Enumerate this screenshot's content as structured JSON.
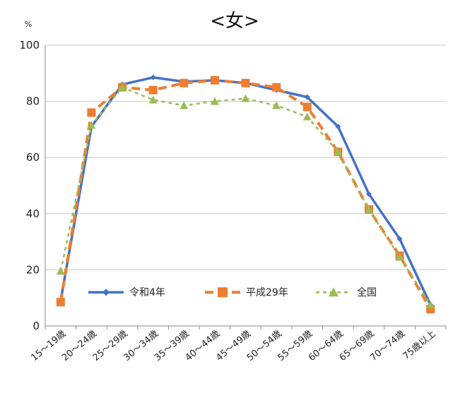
{
  "chart_data": {
    "type": "line",
    "title": "<女>",
    "ylabel": "%",
    "xlabel": "",
    "ylim": [
      0,
      100
    ],
    "yticks": [
      0,
      20,
      40,
      60,
      80,
      100
    ],
    "grid": true,
    "legend_position": "bottom-center (inside plot)",
    "categories": [
      "15～19歳",
      "20～24歳",
      "25～29歳",
      "30～34歳",
      "35～39歳",
      "40～44歳",
      "45～49歳",
      "50～54歳",
      "55～59歳",
      "60～64歳",
      "65～69歳",
      "70～74歳",
      "75歳以上"
    ],
    "series": [
      {
        "name": "令和4年",
        "color": "#4472C4",
        "marker": "diamond",
        "line_style": "solid",
        "values": [
          9,
          71,
          86,
          88.5,
          87,
          87.5,
          86.5,
          84,
          81.5,
          71,
          47,
          31,
          7.5
        ]
      },
      {
        "name": "平成29年",
        "color": "#ED7D31",
        "marker": "square",
        "line_style": "dashed",
        "values": [
          8.5,
          76,
          85,
          84,
          86.5,
          87.5,
          86.5,
          85,
          78,
          62,
          41.5,
          25,
          6
        ]
      },
      {
        "name": "全国",
        "color": "#9BBB59",
        "marker": "triangle",
        "line_style": "dotted",
        "values": [
          19.5,
          71.5,
          85,
          80.5,
          78.5,
          80,
          81,
          78.5,
          74.5,
          62,
          41.5,
          24.5,
          7.5
        ]
      }
    ]
  }
}
